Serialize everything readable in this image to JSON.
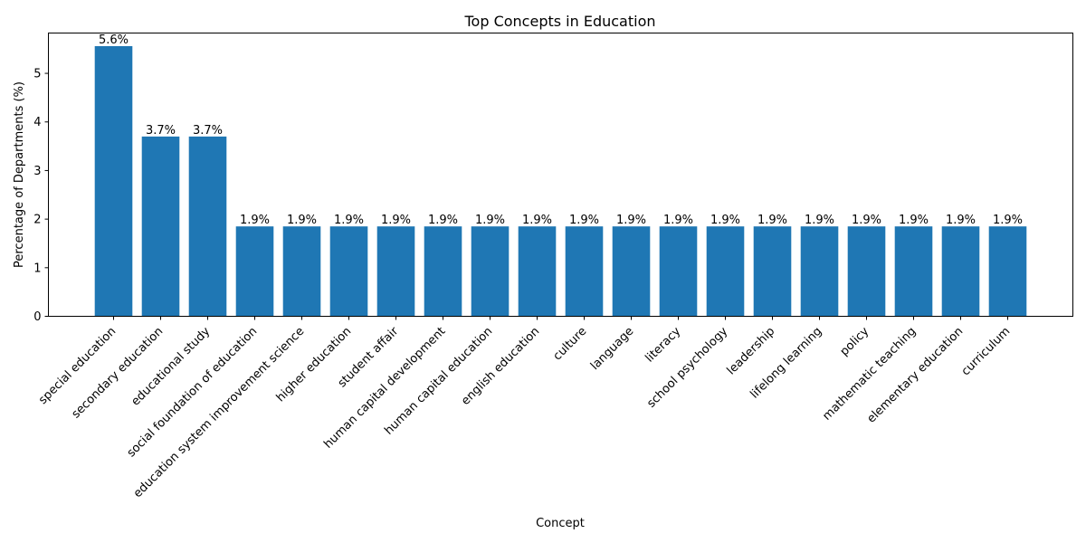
{
  "chart_data": {
    "type": "bar",
    "title": "Top Concepts in Education",
    "xlabel": "Concept",
    "ylabel": "Percentage of Departments (%)",
    "ylim": [
      0,
      5.83
    ],
    "yticks": [
      0,
      1,
      2,
      3,
      4,
      5
    ],
    "grid": false,
    "bar_color": "#1f77b4",
    "categories": [
      "special education",
      "secondary education",
      "educational study",
      "social foundation of education",
      "education system improvement science",
      "higher education",
      "student affair",
      "human capital development",
      "human capital education",
      "english education",
      "culture",
      "language",
      "literacy",
      "school psychology",
      "leadership",
      "lifelong learning",
      "policy",
      "mathematic teaching",
      "elementary education",
      "curriculum"
    ],
    "values": [
      5.56,
      3.7,
      3.7,
      1.85,
      1.85,
      1.85,
      1.85,
      1.85,
      1.85,
      1.85,
      1.85,
      1.85,
      1.85,
      1.85,
      1.85,
      1.85,
      1.85,
      1.85,
      1.85,
      1.85
    ],
    "data_labels": [
      "5.6%",
      "3.7%",
      "3.7%",
      "1.9%",
      "1.9%",
      "1.9%",
      "1.9%",
      "1.9%",
      "1.9%",
      "1.9%",
      "1.9%",
      "1.9%",
      "1.9%",
      "1.9%",
      "1.9%",
      "1.9%",
      "1.9%",
      "1.9%",
      "1.9%",
      "1.9%"
    ]
  }
}
